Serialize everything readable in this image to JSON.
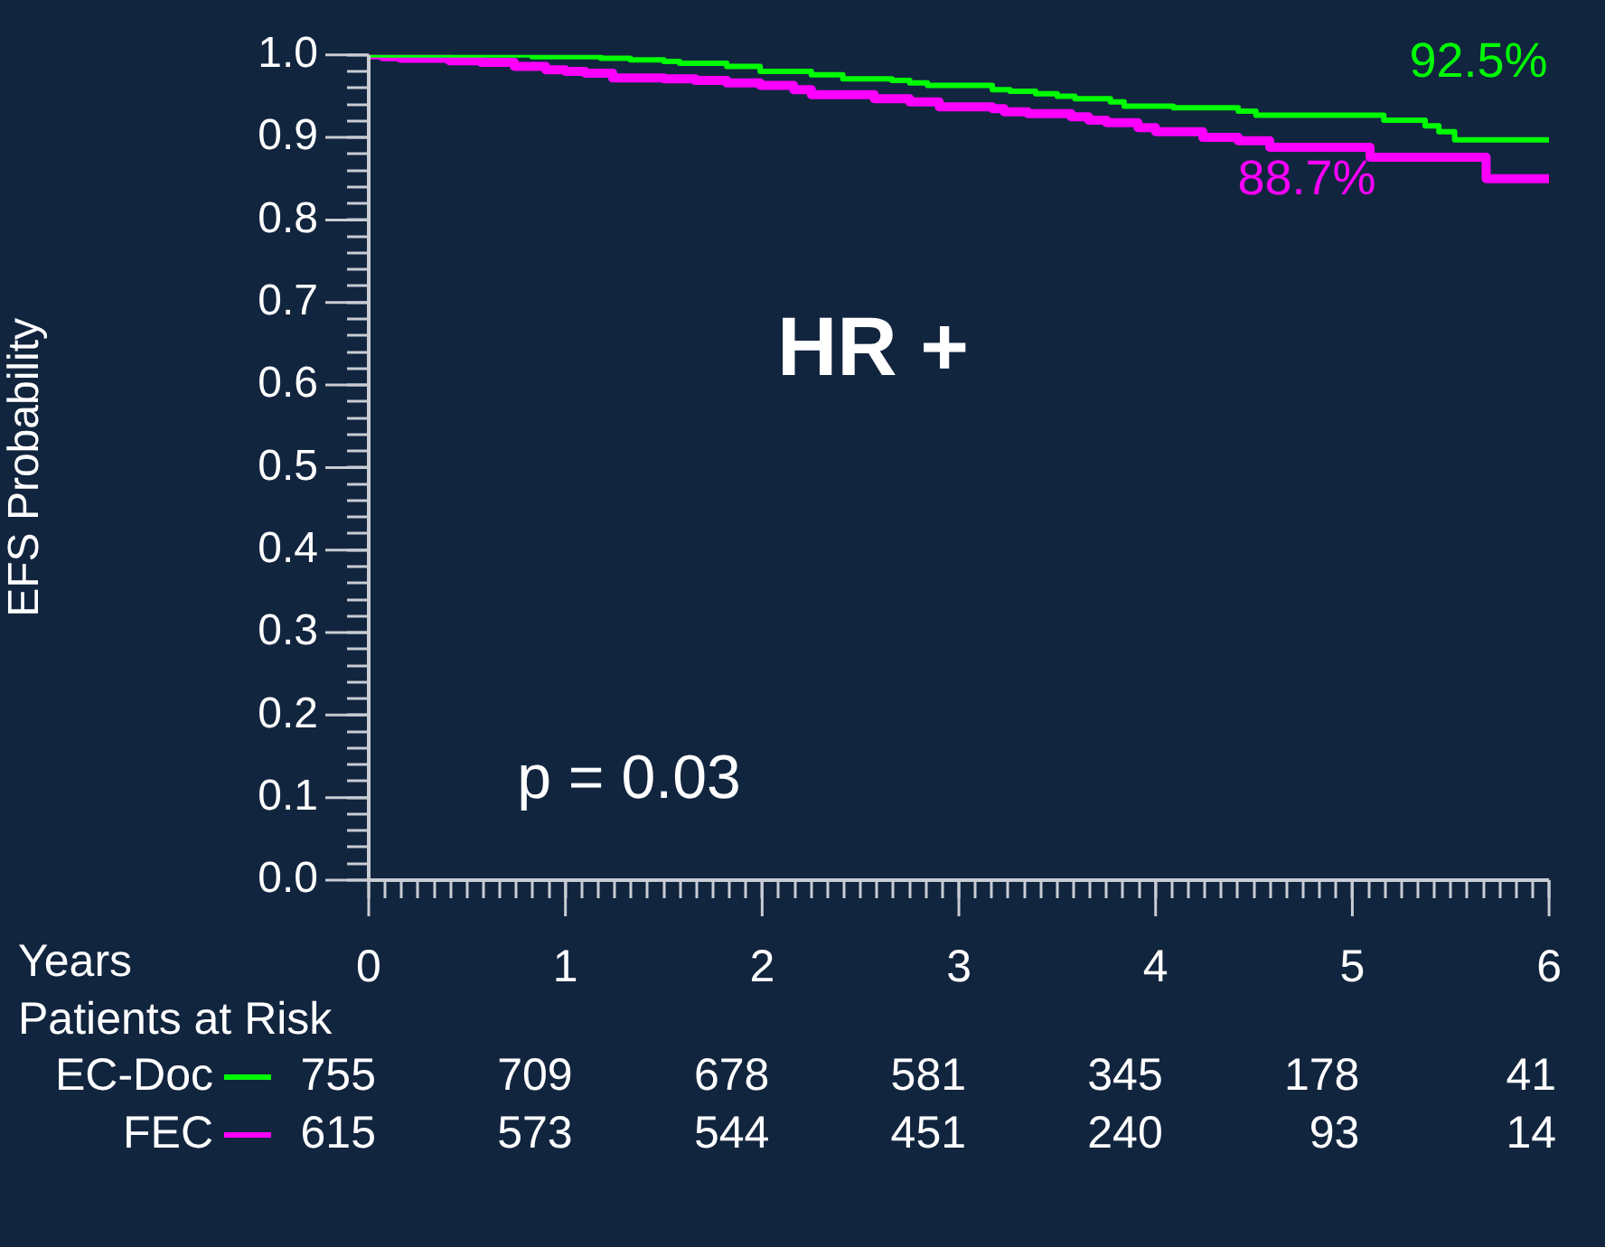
{
  "chart_data": {
    "type": "step",
    "xlabel": "Years",
    "ylabel": "EFS Probability",
    "legend": "bottom left",
    "grid": false,
    "xlim": [
      0,
      6
    ],
    "ylim": [
      0,
      1
    ],
    "xticks": [
      {
        "value": 0,
        "label": "0"
      },
      {
        "value": 0.0833,
        "label": null
      },
      {
        "value": 0.1667,
        "label": null
      },
      {
        "value": 0.25,
        "label": null
      },
      {
        "value": 0.3333,
        "label": null
      },
      {
        "value": 0.4167,
        "label": null
      },
      {
        "value": 0.5,
        "label": null
      },
      {
        "value": 0.5833,
        "label": null
      },
      {
        "value": 0.6667,
        "label": null
      },
      {
        "value": 0.75,
        "label": null
      },
      {
        "value": 0.8333,
        "label": null
      },
      {
        "value": 0.9167,
        "label": null
      },
      {
        "value": 1,
        "label": "1"
      },
      {
        "value": 1.0833,
        "label": null
      },
      {
        "value": 1.1667,
        "label": null
      },
      {
        "value": 1.25,
        "label": null
      },
      {
        "value": 1.3333,
        "label": null
      },
      {
        "value": 1.4167,
        "label": null
      },
      {
        "value": 1.5,
        "label": null
      },
      {
        "value": 1.5833,
        "label": null
      },
      {
        "value": 1.6667,
        "label": null
      },
      {
        "value": 1.75,
        "label": null
      },
      {
        "value": 1.8333,
        "label": null
      },
      {
        "value": 1.9167,
        "label": null
      },
      {
        "value": 2,
        "label": "2"
      },
      {
        "value": 2.0833,
        "label": null
      },
      {
        "value": 2.1667,
        "label": null
      },
      {
        "value": 2.25,
        "label": null
      },
      {
        "value": 2.3333,
        "label": null
      },
      {
        "value": 2.4167,
        "label": null
      },
      {
        "value": 2.5,
        "label": null
      },
      {
        "value": 2.5833,
        "label": null
      },
      {
        "value": 2.6667,
        "label": null
      },
      {
        "value": 2.75,
        "label": null
      },
      {
        "value": 2.8333,
        "label": null
      },
      {
        "value": 2.9167,
        "label": null
      },
      {
        "value": 3,
        "label": "3"
      },
      {
        "value": 3.0833,
        "label": null
      },
      {
        "value": 3.1667,
        "label": null
      },
      {
        "value": 3.25,
        "label": null
      },
      {
        "value": 3.3333,
        "label": null
      },
      {
        "value": 3.4167,
        "label": null
      },
      {
        "value": 3.5,
        "label": null
      },
      {
        "value": 3.5833,
        "label": null
      },
      {
        "value": 3.6667,
        "label": null
      },
      {
        "value": 3.75,
        "label": null
      },
      {
        "value": 3.8333,
        "label": null
      },
      {
        "value": 3.9167,
        "label": null
      },
      {
        "value": 4,
        "label": "4"
      },
      {
        "value": 4.0833,
        "label": null
      },
      {
        "value": 4.1667,
        "label": null
      },
      {
        "value": 4.25,
        "label": null
      },
      {
        "value": 4.3333,
        "label": null
      },
      {
        "value": 4.4167,
        "label": null
      },
      {
        "value": 4.5,
        "label": null
      },
      {
        "value": 4.5833,
        "label": null
      },
      {
        "value": 4.6667,
        "label": null
      },
      {
        "value": 4.75,
        "label": null
      },
      {
        "value": 4.8333,
        "label": null
      },
      {
        "value": 4.9167,
        "label": null
      },
      {
        "value": 5,
        "label": "5"
      },
      {
        "value": 5.0833,
        "label": null
      },
      {
        "value": 5.1667,
        "label": null
      },
      {
        "value": 5.25,
        "label": null
      },
      {
        "value": 5.3333,
        "label": null
      },
      {
        "value": 5.4167,
        "label": null
      },
      {
        "value": 5.5,
        "label": null
      },
      {
        "value": 5.5833,
        "label": null
      },
      {
        "value": 5.6667,
        "label": null
      },
      {
        "value": 5.75,
        "label": null
      },
      {
        "value": 5.8333,
        "label": null
      },
      {
        "value": 5.9167,
        "label": null
      },
      {
        "value": 6,
        "label": "6"
      }
    ],
    "yticks": [
      {
        "value": 0,
        "label": "0.0"
      },
      {
        "value": 0.02,
        "label": null
      },
      {
        "value": 0.04,
        "label": null
      },
      {
        "value": 0.06,
        "label": null
      },
      {
        "value": 0.08,
        "label": null
      },
      {
        "value": 0.1,
        "label": "0.1"
      },
      {
        "value": 0.12,
        "label": null
      },
      {
        "value": 0.14,
        "label": null
      },
      {
        "value": 0.16,
        "label": null
      },
      {
        "value": 0.18,
        "label": null
      },
      {
        "value": 0.2,
        "label": "0.2"
      },
      {
        "value": 0.22,
        "label": null
      },
      {
        "value": 0.24,
        "label": null
      },
      {
        "value": 0.26,
        "label": null
      },
      {
        "value": 0.28,
        "label": null
      },
      {
        "value": 0.3,
        "label": "0.3"
      },
      {
        "value": 0.32,
        "label": null
      },
      {
        "value": 0.34,
        "label": null
      },
      {
        "value": 0.36,
        "label": null
      },
      {
        "value": 0.38,
        "label": null
      },
      {
        "value": 0.4,
        "label": "0.4"
      },
      {
        "value": 0.42,
        "label": null
      },
      {
        "value": 0.44,
        "label": null
      },
      {
        "value": 0.46,
        "label": null
      },
      {
        "value": 0.48,
        "label": null
      },
      {
        "value": 0.5,
        "label": "0.5"
      },
      {
        "value": 0.52,
        "label": null
      },
      {
        "value": 0.54,
        "label": null
      },
      {
        "value": 0.56,
        "label": null
      },
      {
        "value": 0.58,
        "label": null
      },
      {
        "value": 0.6,
        "label": "0.6"
      },
      {
        "value": 0.62,
        "label": null
      },
      {
        "value": 0.64,
        "label": null
      },
      {
        "value": 0.66,
        "label": null
      },
      {
        "value": 0.68,
        "label": null
      },
      {
        "value": 0.7,
        "label": "0.7"
      },
      {
        "value": 0.72,
        "label": null
      },
      {
        "value": 0.74,
        "label": null
      },
      {
        "value": 0.76,
        "label": null
      },
      {
        "value": 0.78,
        "label": null
      },
      {
        "value": 0.8,
        "label": "0.8"
      },
      {
        "value": 0.82,
        "label": null
      },
      {
        "value": 0.84,
        "label": null
      },
      {
        "value": 0.86,
        "label": null
      },
      {
        "value": 0.88,
        "label": null
      },
      {
        "value": 0.9,
        "label": "0.9"
      },
      {
        "value": 0.92,
        "label": null
      },
      {
        "value": 0.94,
        "label": null
      },
      {
        "value": 0.96,
        "label": null
      },
      {
        "value": 0.98,
        "label": null
      },
      {
        "value": 1,
        "label": "1.0"
      }
    ],
    "series": [
      {
        "name": "EC-Doc",
        "color": "#00ff00",
        "x": [
          0,
          0.83,
          1.18,
          1.33,
          1.5,
          1.58,
          1.82,
          1.99,
          2.25,
          2.41,
          2.66,
          2.75,
          2.84,
          3.17,
          3.26,
          3.39,
          3.5,
          3.59,
          3.77,
          3.84,
          4.09,
          4.42,
          4.51,
          5.16,
          5.37,
          5.44,
          5.52,
          6
        ],
        "values": [
          1,
          0.998,
          0.996,
          0.994,
          0.992,
          0.99,
          0.986,
          0.98,
          0.976,
          0.971,
          0.969,
          0.966,
          0.963,
          0.958,
          0.956,
          0.953,
          0.95,
          0.947,
          0.943,
          0.938,
          0.936,
          0.932,
          0.927,
          0.921,
          0.914,
          0.907,
          0.897,
          0.897
        ]
      },
      {
        "name": "FEC",
        "color": "#ff00ff",
        "x": [
          0,
          0.07,
          0.16,
          0.41,
          0.57,
          0.74,
          0.9,
          1.0,
          1.1,
          1.24,
          1.5,
          1.66,
          1.82,
          1.99,
          2.16,
          2.25,
          2.57,
          2.75,
          2.9,
          3.17,
          3.23,
          3.35,
          3.57,
          3.66,
          3.75,
          3.91,
          4.0,
          4.24,
          4.42,
          4.58,
          5.09,
          5.68,
          6
        ],
        "values": [
          1,
          0.998,
          0.996,
          0.993,
          0.991,
          0.986,
          0.982,
          0.98,
          0.978,
          0.972,
          0.971,
          0.969,
          0.966,
          0.963,
          0.958,
          0.952,
          0.947,
          0.943,
          0.937,
          0.935,
          0.931,
          0.929,
          0.925,
          0.921,
          0.918,
          0.912,
          0.907,
          0.9,
          0.896,
          0.888,
          0.876,
          0.85,
          0.85
        ]
      }
    ],
    "annotations": [
      "HR +",
      "p = 0.03",
      "92.5%",
      "88.7%",
      "Patients at Risk",
      "755",
      "709",
      "678",
      "581",
      "345",
      "178",
      "41",
      "615",
      "573",
      "544",
      "451",
      "240",
      "93",
      "14"
    ]
  }
}
